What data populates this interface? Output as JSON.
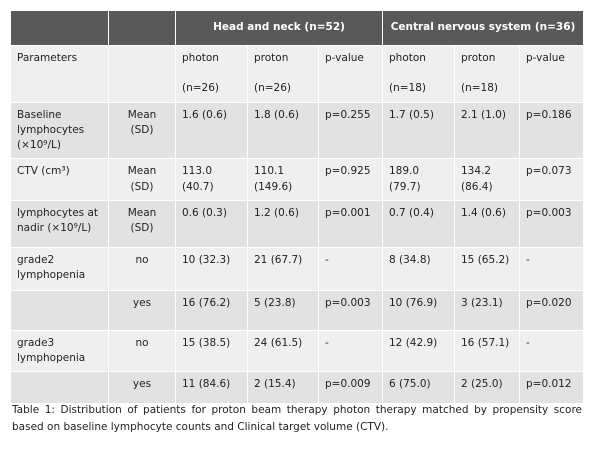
{
  "table": {
    "header": [
      "Head and neck (n=52)",
      "Central nervous system (n=36)"
    ],
    "rows": [
      [
        "Parameters",
        "",
        "photon\n\n(n=26)",
        "proton\n\n(n=26)",
        "p-value",
        "photon\n\n(n=18)",
        "proton\n\n(n=18)",
        "p-value"
      ],
      [
        "Baseline lymphocytes (×10⁹/L)",
        "Mean\n(SD)",
        "1.6 (0.6)",
        "1.8 (0.6)",
        "p=0.255",
        "1.7 (0.5)",
        "2.1 (1.0)",
        "p=0.186"
      ],
      [
        "CTV (cm³)",
        "Mean\n(SD)",
        "113.0\n(40.7)",
        "110.1\n(149.6)",
        "p=0.925",
        "189.0\n(79.7)",
        "134.2\n(86.4)",
        "p=0.073"
      ],
      [
        "lymphocytes at nadir (×10⁹/L)",
        "Mean\n(SD)",
        "0.6 (0.3)",
        "1.2 (0.6)",
        "p=0.001",
        "0.7 (0.4)",
        "1.4 (0.6)",
        "p=0.003"
      ],
      [
        "grade2 lymphopenia",
        "no",
        "10 (32.3)",
        "21 (67.7)",
        "-",
        "8 (34.8)",
        "15 (65.2)",
        "-"
      ],
      [
        "",
        "yes",
        "16 (76.2)",
        "5 (23.8)",
        "p=0.003",
        "10 (76.9)",
        "3 (23.1)",
        "p=0.020"
      ],
      [
        "grade3 lymphopenia",
        "no",
        "15 (38.5)",
        "24 (61.5)",
        "-",
        "12 (42.9)",
        "16 (57.1)",
        "-"
      ],
      [
        "",
        "yes",
        "11 (84.6)",
        "2 (15.4)",
        "p=0.009",
        "6 (75.0)",
        "2 (25.0)",
        "p=0.012"
      ]
    ]
  },
  "caption": "Table 1: Distribution of patients for proton beam therapy photon therapy matched by propensity score based on baseline lymphocyte counts and Clinical target volume (CTV)."
}
